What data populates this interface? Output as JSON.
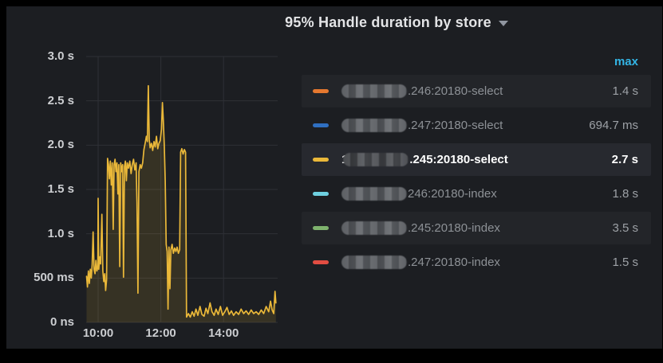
{
  "panel": {
    "title": "95% Handle duration by store"
  },
  "legend": {
    "header": "max",
    "rows": [
      {
        "color": "#E5782F",
        "label_suffix": ".246:20180-select",
        "value": "1.4 s",
        "selected": false,
        "prefix": ""
      },
      {
        "color": "#2F6FC1",
        "label_suffix": ".247:20180-select",
        "value": "694.7 ms",
        "selected": false,
        "prefix": ""
      },
      {
        "color": "#EAB839",
        "label_suffix": ".245:20180-select",
        "value": "2.7 s",
        "selected": true,
        "prefix": "1"
      },
      {
        "color": "#6ED0E0",
        "label_suffix": "246:20180-index",
        "value": "1.8 s",
        "selected": false,
        "prefix": ""
      },
      {
        "color": "#7EB26D",
        "label_suffix": ".245:20180-index",
        "value": "3.5 s",
        "selected": false,
        "prefix": ""
      },
      {
        "color": "#E24D42",
        "label_suffix": ".247:20180-index",
        "value": "1.5 s",
        "selected": false,
        "prefix": ""
      }
    ]
  },
  "chart_data": {
    "type": "area",
    "title": "95% Handle duration by store",
    "unit": "duration (seconds)",
    "grid": true,
    "legend_position": "right",
    "ylim": [
      0,
      3.0
    ],
    "y_tick_values": [
      3.0,
      2.5,
      2.0,
      1.5,
      1.0,
      0.5,
      0
    ],
    "y_tick_labels": [
      "3.0 s",
      "2.5 s",
      "2.0 s",
      "1.5 s",
      "1.0 s",
      "500 ms",
      "0 ns"
    ],
    "x_tick_hours": [
      10,
      12,
      14
    ],
    "x_tick_labels": [
      "10:00",
      "12:00",
      "14:00"
    ],
    "xlim_hours": [
      9.63,
      15.67
    ],
    "series": [
      {
        "name": ".245:20180-select",
        "color": "#EAB839",
        "max": "2.7 s",
        "points": [
          [
            9.63,
            0.52
          ],
          [
            9.66,
            0.4
          ],
          [
            9.69,
            0.58
          ],
          [
            9.72,
            0.44
          ],
          [
            9.75,
            0.6
          ],
          [
            9.78,
            0.5
          ],
          [
            9.81,
            0.65
          ],
          [
            9.84,
            1.02
          ],
          [
            9.87,
            0.6
          ],
          [
            9.9,
            0.55
          ],
          [
            9.93,
            0.7
          ],
          [
            9.96,
            0.58
          ],
          [
            9.99,
            0.62
          ],
          [
            10.0,
            1.4
          ],
          [
            10.02,
            0.6
          ],
          [
            10.05,
            0.74
          ],
          [
            10.08,
            0.66
          ],
          [
            10.12,
            1.22
          ],
          [
            10.15,
            0.58
          ],
          [
            10.18,
            0.46
          ],
          [
            10.21,
            0.55
          ],
          [
            10.24,
            0.36
          ],
          [
            10.27,
            0.48
          ],
          [
            10.3,
            1.85
          ],
          [
            10.33,
            1.78
          ],
          [
            10.36,
            1.62
          ],
          [
            10.39,
            1.82
          ],
          [
            10.42,
            1.55
          ],
          [
            10.45,
            1.8
          ],
          [
            10.48,
            1.05
          ],
          [
            10.51,
            1.78
          ],
          [
            10.54,
            1.84
          ],
          [
            10.57,
            1.7
          ],
          [
            10.6,
            1.8
          ],
          [
            10.63,
            1.45
          ],
          [
            10.66,
            1.78
          ],
          [
            10.69,
            0.63
          ],
          [
            10.72,
            1.8
          ],
          [
            10.75,
            1.7
          ],
          [
            10.78,
            1.78
          ],
          [
            10.81,
            0.51
          ],
          [
            10.84,
            1.76
          ],
          [
            10.87,
            1.82
          ],
          [
            10.9,
            1.6
          ],
          [
            10.93,
            1.8
          ],
          [
            10.97,
            1.74
          ],
          [
            11.01,
            1.82
          ],
          [
            11.05,
            1.68
          ],
          [
            11.09,
            1.78
          ],
          [
            11.13,
            1.84
          ],
          [
            11.17,
            1.72
          ],
          [
            11.21,
            1.8
          ],
          [
            11.24,
            1.35
          ],
          [
            11.27,
            0.33
          ],
          [
            11.3,
            1.7
          ],
          [
            11.34,
            1.78
          ],
          [
            11.38,
            1.74
          ],
          [
            11.42,
            1.8
          ],
          [
            11.46,
            1.95
          ],
          [
            11.5,
            2.02
          ],
          [
            11.54,
            2.1
          ],
          [
            11.57,
            2.04
          ],
          [
            11.6,
            2.67
          ],
          [
            11.63,
            2.06
          ],
          [
            11.66,
            1.97
          ],
          [
            11.7,
            2.02
          ],
          [
            11.74,
            1.94
          ],
          [
            11.78,
            2.04
          ],
          [
            11.82,
            1.98
          ],
          [
            11.86,
            2.1
          ],
          [
            11.9,
            1.96
          ],
          [
            11.94,
            2.02
          ],
          [
            11.98,
            2.05
          ],
          [
            12.02,
            2.18
          ],
          [
            12.05,
            2.48
          ],
          [
            12.08,
            2.28
          ],
          [
            12.11,
            2.0
          ],
          [
            12.14,
            1.6
          ],
          [
            12.17,
            0.88
          ],
          [
            12.2,
            0.8
          ],
          [
            12.23,
            0.15
          ],
          [
            12.26,
            0.85
          ],
          [
            12.29,
            0.38
          ],
          [
            12.32,
            0.82
          ],
          [
            12.36,
            0.88
          ],
          [
            12.4,
            0.78
          ],
          [
            12.44,
            0.84
          ],
          [
            12.48,
            0.8
          ],
          [
            12.52,
            0.85
          ],
          [
            12.56,
            0.78
          ],
          [
            12.6,
            0.82
          ],
          [
            12.63,
            1.92
          ],
          [
            12.67,
            1.96
          ],
          [
            12.71,
            1.9
          ],
          [
            12.75,
            1.95
          ],
          [
            12.79,
            1.92
          ],
          [
            12.82,
            0.06
          ],
          [
            12.88,
            0.1
          ],
          [
            12.94,
            0.06
          ],
          [
            13.0,
            0.12
          ],
          [
            13.06,
            0.07
          ],
          [
            13.12,
            0.15
          ],
          [
            13.18,
            0.08
          ],
          [
            13.25,
            0.18
          ],
          [
            13.31,
            0.09
          ],
          [
            13.38,
            0.07
          ],
          [
            13.44,
            0.16
          ],
          [
            13.5,
            0.1
          ],
          [
            13.57,
            0.22
          ],
          [
            13.63,
            0.12
          ],
          [
            13.7,
            0.08
          ],
          [
            13.76,
            0.15
          ],
          [
            13.83,
            0.09
          ],
          [
            13.9,
            0.18
          ],
          [
            13.97,
            0.08
          ],
          [
            14.04,
            0.12
          ],
          [
            14.11,
            0.17
          ],
          [
            14.18,
            0.09
          ],
          [
            14.25,
            0.13
          ],
          [
            14.32,
            0.08
          ],
          [
            14.4,
            0.12
          ],
          [
            14.48,
            0.09
          ],
          [
            14.56,
            0.15
          ],
          [
            14.64,
            0.1
          ],
          [
            14.72,
            0.13
          ],
          [
            14.8,
            0.09
          ],
          [
            14.88,
            0.14
          ],
          [
            14.96,
            0.1
          ],
          [
            15.04,
            0.12
          ],
          [
            15.12,
            0.09
          ],
          [
            15.2,
            0.14
          ],
          [
            15.28,
            0.1
          ],
          [
            15.36,
            0.18
          ],
          [
            15.44,
            0.12
          ],
          [
            15.5,
            0.24
          ],
          [
            15.55,
            0.14
          ],
          [
            15.6,
            0.1
          ],
          [
            15.64,
            0.35
          ],
          [
            15.67,
            0.22
          ]
        ]
      }
    ]
  },
  "colors": {
    "background": "#000000",
    "panel_background": "#1c1e22",
    "grid": "#2e3036",
    "series_line": "#EAB839",
    "legend_header": "#33b5e5",
    "axis_text": "#ccced1"
  }
}
